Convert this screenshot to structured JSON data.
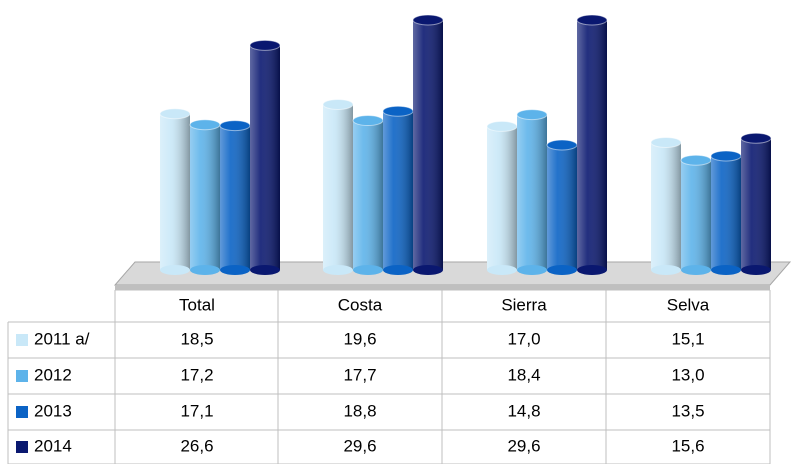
{
  "chart_data": {
    "type": "bar",
    "categories": [
      "Total",
      "Costa",
      "Sierra",
      "Selva"
    ],
    "series": [
      {
        "name": "2011 a/",
        "color": "#c9e8f8",
        "values": [
          18.5,
          19.6,
          17.0,
          15.1
        ],
        "value_labels": [
          "18,5",
          "19,6",
          "17,0",
          "15,1"
        ]
      },
      {
        "name": "2012",
        "color": "#5db3ea",
        "values": [
          17.2,
          17.7,
          18.4,
          13.0
        ],
        "value_labels": [
          "17,2",
          "17,7",
          "18,4",
          "13,0"
        ]
      },
      {
        "name": "2013",
        "color": "#0b63c5",
        "values": [
          17.1,
          18.8,
          14.8,
          13.5
        ],
        "value_labels": [
          "17,1",
          "18,8",
          "14,8",
          "13,5"
        ]
      },
      {
        "name": "2014",
        "color": "#0a1870",
        "values": [
          26.6,
          29.6,
          29.6,
          15.6
        ],
        "value_labels": [
          "26,6",
          "29,6",
          "29,6",
          "15,6"
        ]
      }
    ]
  }
}
